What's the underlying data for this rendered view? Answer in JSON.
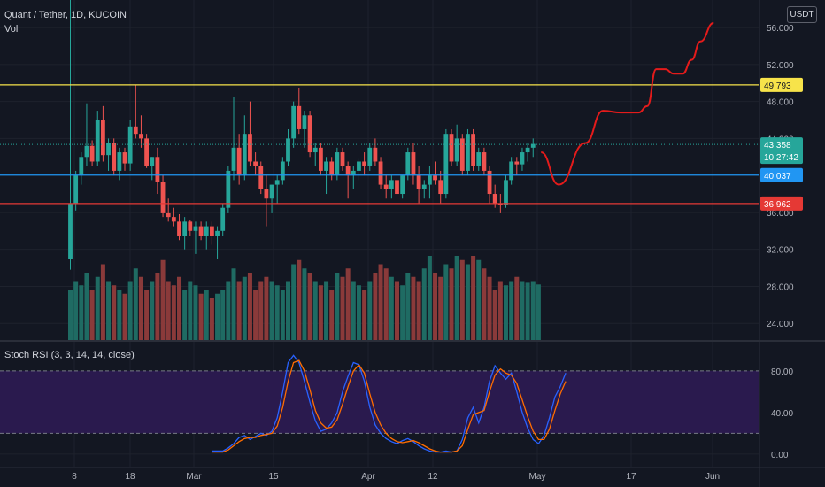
{
  "header": {
    "title": "Quant / Tether, 1D, KUCOIN",
    "volume_label": "Vol",
    "currency": "USDT",
    "rsi_title": "Stoch RSI (3, 3, 14, 14, close)"
  },
  "colors": {
    "background": "#131722",
    "grid": "#1e222d",
    "up": "#26a69a",
    "down": "#ef5350",
    "vol_up": "#1f6b63",
    "vol_down": "#8a3a3a",
    "resistance": "#f7e34a",
    "support_blue": "#2196f3",
    "support_red": "#e53935",
    "projection": "#e41b1b",
    "rsi_k": "#2962ff",
    "rsi_d": "#ff6d00",
    "rsi_band": "#2a1a4e"
  },
  "chart_data": [
    {
      "type": "candlestick",
      "x_ticks": [
        "8",
        "18",
        "Mar",
        "15",
        "Apr",
        "12",
        "May",
        "17",
        "Jun"
      ],
      "y_ticks": [
        "56.000",
        "52.000",
        "48.000",
        "44.000",
        "36.000",
        "32.000",
        "28.000",
        "24.000"
      ],
      "ylim": [
        22.2,
        58.5
      ],
      "levels": [
        {
          "name": "resistance",
          "value": 49.793,
          "label": "49.793"
        },
        {
          "name": "support-blue",
          "value": 40.037,
          "label": "40.037"
        },
        {
          "name": "support-red",
          "value": 36.962,
          "label": "36.962"
        }
      ],
      "last_price": {
        "value": 43.358,
        "label": "43.358",
        "countdown": "10:27:42"
      },
      "candles_ohlc": [
        [
          31.0,
          38.0,
          29.8,
          37.0
        ],
        [
          37.0,
          40.5,
          36.2,
          40.0
        ],
        [
          40.0,
          42.5,
          39.0,
          42.0
        ],
        [
          42.0,
          47.8,
          41.0,
          43.2
        ],
        [
          43.2,
          43.8,
          41.0,
          41.5
        ],
        [
          41.5,
          47.0,
          41.0,
          46.0
        ],
        [
          46.0,
          47.5,
          41.5,
          42.2
        ],
        [
          42.2,
          44.0,
          40.5,
          43.5
        ],
        [
          43.5,
          44.0,
          40.0,
          40.5
        ],
        [
          40.5,
          43.0,
          39.5,
          42.5
        ],
        [
          42.5,
          43.0,
          40.5,
          41.3
        ],
        [
          41.3,
          46.0,
          40.5,
          45.3
        ],
        [
          45.3,
          49.8,
          44.0,
          44.5
        ],
        [
          44.5,
          46.5,
          43.0,
          44.0
        ],
        [
          44.0,
          44.5,
          40.8,
          41.0
        ],
        [
          41.0,
          42.0,
          39.5,
          42.0
        ],
        [
          42.0,
          43.0,
          38.0,
          39.3
        ],
        [
          39.3,
          40.0,
          35.5,
          36.0
        ],
        [
          36.0,
          37.5,
          35.0,
          35.5
        ],
        [
          35.5,
          36.5,
          34.5,
          35.0
        ],
        [
          35.0,
          35.8,
          33.0,
          33.5
        ],
        [
          33.5,
          35.5,
          32.0,
          35.0
        ],
        [
          35.0,
          35.2,
          33.5,
          34.0
        ],
        [
          34.0,
          35.0,
          31.5,
          34.5
        ],
        [
          34.5,
          35.0,
          33.0,
          33.5
        ],
        [
          33.5,
          35.0,
          32.0,
          34.5
        ],
        [
          34.5,
          35.0,
          32.5,
          33.5
        ],
        [
          33.5,
          34.5,
          31.0,
          34.0
        ],
        [
          34.0,
          37.0,
          33.5,
          36.5
        ],
        [
          36.5,
          41.0,
          36.0,
          40.5
        ],
        [
          40.5,
          48.5,
          39.5,
          43.0
        ],
        [
          43.0,
          44.5,
          39.0,
          40.0
        ],
        [
          40.0,
          46.5,
          39.5,
          44.5
        ],
        [
          44.5,
          48.0,
          41.0,
          41.5
        ],
        [
          41.5,
          42.5,
          40.0,
          41.0
        ],
        [
          41.0,
          41.5,
          38.0,
          38.5
        ],
        [
          38.5,
          40.0,
          34.5,
          37.5
        ],
        [
          37.5,
          39.0,
          36.0,
          39.0
        ],
        [
          39.0,
          40.0,
          37.0,
          39.5
        ],
        [
          39.5,
          42.0,
          39.0,
          41.5
        ],
        [
          41.5,
          45.0,
          41.0,
          44.0
        ],
        [
          44.0,
          48.0,
          43.0,
          47.5
        ],
        [
          47.5,
          49.5,
          44.5,
          45.0
        ],
        [
          45.0,
          47.0,
          43.0,
          46.5
        ],
        [
          46.5,
          47.0,
          42.0,
          42.5
        ],
        [
          42.5,
          43.5,
          41.0,
          43.0
        ],
        [
          43.0,
          43.5,
          40.0,
          40.5
        ],
        [
          40.5,
          42.0,
          38.0,
          41.5
        ],
        [
          41.5,
          42.0,
          39.5,
          40.0
        ],
        [
          40.0,
          43.0,
          39.5,
          42.5
        ],
        [
          42.5,
          43.0,
          40.5,
          41.0
        ],
        [
          41.0,
          41.5,
          37.5,
          40.0
        ],
        [
          40.0,
          41.0,
          38.5,
          40.5
        ],
        [
          40.5,
          41.8,
          39.5,
          41.5
        ],
        [
          41.5,
          42.5,
          40.0,
          41.0
        ],
        [
          41.0,
          43.5,
          40.5,
          43.0
        ],
        [
          43.0,
          44.0,
          41.0,
          41.5
        ],
        [
          41.5,
          42.0,
          38.5,
          39.0
        ],
        [
          39.0,
          40.0,
          37.5,
          38.5
        ],
        [
          38.5,
          40.0,
          37.5,
          39.5
        ],
        [
          39.5,
          40.5,
          37.0,
          38.0
        ],
        [
          38.0,
          40.0,
          37.5,
          40.0
        ],
        [
          40.0,
          43.0,
          39.5,
          42.5
        ],
        [
          42.5,
          43.5,
          39.0,
          40.0
        ],
        [
          40.0,
          41.0,
          37.0,
          38.5
        ],
        [
          38.5,
          39.5,
          37.5,
          39.0
        ],
        [
          39.0,
          41.0,
          37.5,
          40.0
        ],
        [
          40.0,
          41.5,
          39.0,
          39.5
        ],
        [
          39.5,
          40.5,
          37.0,
          38.0
        ],
        [
          38.0,
          45.0,
          37.5,
          44.5
        ],
        [
          44.5,
          45.0,
          41.0,
          41.5
        ],
        [
          41.5,
          45.5,
          41.0,
          44.0
        ],
        [
          44.0,
          44.5,
          40.0,
          40.5
        ],
        [
          40.5,
          45.0,
          40.0,
          44.5
        ],
        [
          44.5,
          45.0,
          40.5,
          41.0
        ],
        [
          41.0,
          43.0,
          40.5,
          42.5
        ],
        [
          42.5,
          43.0,
          40.0,
          40.5
        ],
        [
          40.5,
          41.0,
          37.0,
          38.0
        ],
        [
          38.0,
          39.0,
          36.5,
          37.0
        ],
        [
          37.0,
          38.0,
          36.0,
          36.8
        ],
        [
          36.8,
          40.0,
          36.5,
          39.5
        ],
        [
          39.5,
          42.0,
          39.0,
          41.5
        ],
        [
          41.5,
          42.0,
          40.0,
          41.2
        ],
        [
          41.2,
          43.0,
          40.5,
          42.5
        ],
        [
          42.5,
          43.5,
          41.5,
          43.0
        ],
        [
          43.0,
          44.0,
          42.0,
          43.4
        ]
      ],
      "volume": [
        0.6,
        0.7,
        0.65,
        0.8,
        0.6,
        0.75,
        0.9,
        0.7,
        0.65,
        0.6,
        0.55,
        0.7,
        0.85,
        0.75,
        0.6,
        0.7,
        0.8,
        0.95,
        0.7,
        0.65,
        0.75,
        0.6,
        0.7,
        0.65,
        0.55,
        0.6,
        0.5,
        0.55,
        0.6,
        0.7,
        0.85,
        0.7,
        0.75,
        0.8,
        0.6,
        0.7,
        0.75,
        0.7,
        0.65,
        0.6,
        0.7,
        0.9,
        0.95,
        0.85,
        0.8,
        0.7,
        0.65,
        0.7,
        0.6,
        0.8,
        0.75,
        0.85,
        0.7,
        0.65,
        0.6,
        0.7,
        0.8,
        0.9,
        0.85,
        0.75,
        0.7,
        0.65,
        0.8,
        0.75,
        0.7,
        0.85,
        1.0,
        0.8,
        0.75,
        0.9,
        0.85,
        1.0,
        0.95,
        0.9,
        1.0,
        0.95,
        0.85,
        0.75,
        0.6,
        0.7,
        0.65,
        0.7,
        0.75,
        0.7,
        0.68,
        0.7,
        0.66
      ],
      "volume_up": [
        1,
        1,
        1,
        1,
        0,
        1,
        0,
        1,
        0,
        1,
        0,
        1,
        1,
        0,
        0,
        1,
        0,
        0,
        0,
        0,
        0,
        1,
        1,
        1,
        0,
        1,
        0,
        1,
        1,
        1,
        1,
        0,
        1,
        0,
        0,
        0,
        0,
        1,
        1,
        1,
        1,
        1,
        0,
        1,
        0,
        1,
        0,
        1,
        0,
        1,
        0,
        0,
        1,
        1,
        0,
        1,
        0,
        0,
        0,
        1,
        0,
        1,
        1,
        0,
        0,
        1,
        1,
        0,
        0,
        1,
        0,
        1,
        0,
        1,
        0,
        1,
        0,
        0,
        0,
        0,
        1,
        1,
        0,
        1,
        1,
        1,
        1
      ],
      "projection": [
        [
          0,
          42.5
        ],
        [
          4,
          39.0
        ],
        [
          10,
          43.5
        ],
        [
          14,
          47.0
        ],
        [
          18,
          46.8
        ],
        [
          22,
          46.8
        ],
        [
          24,
          47.5
        ],
        [
          26,
          51.5
        ],
        [
          28,
          51.5
        ],
        [
          30,
          51.0
        ],
        [
          32,
          51.0
        ],
        [
          34,
          52.5
        ],
        [
          36,
          54.5
        ],
        [
          39,
          56.5
        ]
      ]
    },
    {
      "type": "line",
      "title": "Stoch RSI (3, 3, 14, 14, close)",
      "y_ticks": [
        "80.00",
        "40.00",
        "0.00"
      ],
      "ylim": [
        -12,
        108
      ],
      "band": [
        20,
        80
      ],
      "x_start_index": 26,
      "series": [
        {
          "name": "K",
          "values": [
            3,
            3,
            3,
            6,
            10,
            16,
            18,
            14,
            17,
            20,
            18,
            22,
            35,
            60,
            88,
            95,
            88,
            70,
            50,
            32,
            22,
            24,
            30,
            40,
            60,
            75,
            88,
            86,
            70,
            45,
            28,
            20,
            15,
            12,
            10,
            13,
            15,
            12,
            8,
            5,
            3,
            2,
            2,
            3,
            2,
            3,
            14,
            35,
            45,
            30,
            45,
            70,
            85,
            78,
            72,
            78,
            60,
            40,
            25,
            14,
            10,
            18,
            35,
            55,
            65,
            78
          ]
        },
        {
          "name": "D",
          "values": [
            2,
            2,
            2,
            4,
            8,
            12,
            15,
            16,
            16,
            18,
            19,
            20,
            27,
            45,
            70,
            88,
            90,
            80,
            62,
            42,
            30,
            25,
            26,
            33,
            48,
            65,
            80,
            86,
            78,
            58,
            40,
            28,
            20,
            15,
            12,
            11,
            12,
            13,
            11,
            8,
            5,
            3,
            2,
            2,
            2,
            3,
            8,
            24,
            38,
            40,
            42,
            60,
            76,
            82,
            78,
            76,
            68,
            52,
            36,
            22,
            14,
            14,
            24,
            42,
            58,
            70
          ]
        }
      ]
    }
  ]
}
